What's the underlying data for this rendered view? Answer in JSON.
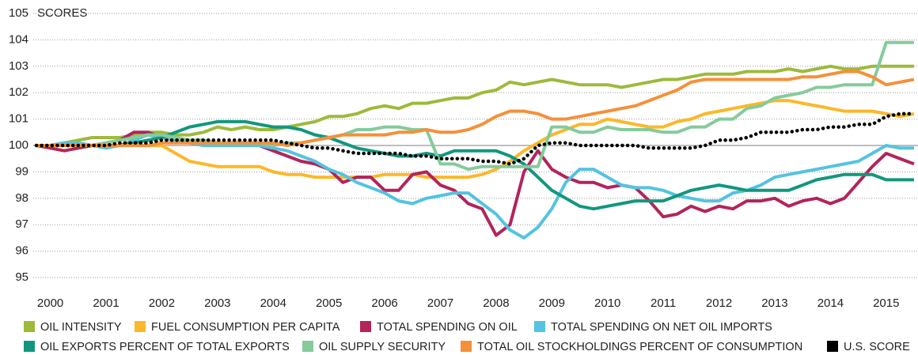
{
  "chart_data": {
    "type": "line",
    "y_label": "SCORES",
    "categories": [
      null,
      "2000",
      null,
      null,
      null,
      "2001",
      null,
      null,
      null,
      "2002",
      null,
      null,
      null,
      "2003",
      null,
      null,
      null,
      "2004",
      null,
      null,
      null,
      "2005",
      null,
      null,
      null,
      "2006",
      null,
      null,
      null,
      "2007",
      null,
      null,
      null,
      "2008",
      null,
      null,
      null,
      "2009",
      null,
      null,
      null,
      "2010",
      null,
      null,
      null,
      "2011",
      null,
      null,
      null,
      "2012",
      null,
      null,
      null,
      "2013",
      null,
      null,
      null,
      "2014",
      null,
      null,
      null,
      "2015",
      null,
      null
    ],
    "ylim": [
      95,
      105
    ],
    "yticks": [
      95,
      96,
      97,
      98,
      99,
      100,
      101,
      102,
      103,
      104,
      105
    ],
    "grid": true,
    "reference_line": 100,
    "legend": "bottom",
    "series": [
      {
        "name": "OIL INTENSITY",
        "color": "#9dba3a",
        "values": [
          100,
          100,
          100.1,
          100.2,
          100.3,
          100.3,
          100.3,
          100.4,
          100.5,
          100.5,
          100.4,
          100.4,
          100.5,
          100.7,
          100.6,
          100.7,
          100.6,
          100.6,
          100.7,
          100.8,
          100.9,
          101.1,
          101.1,
          101.2,
          101.4,
          101.5,
          101.4,
          101.6,
          101.6,
          101.7,
          101.8,
          101.8,
          102.0,
          102.1,
          102.4,
          102.3,
          102.4,
          102.5,
          102.4,
          102.3,
          102.3,
          102.3,
          102.2,
          102.3,
          102.4,
          102.5,
          102.5,
          102.6,
          102.7,
          102.7,
          102.7,
          102.8,
          102.8,
          102.8,
          102.9,
          102.8,
          102.9,
          103.0,
          102.9,
          102.9,
          103.0,
          103.0,
          103.0,
          103.0
        ]
      },
      {
        "name": "FUEL CONSUMPTION PER CAPITA",
        "color": "#fbb829",
        "values": [
          100,
          100,
          100,
          100,
          100,
          100,
          100,
          100,
          100,
          100,
          99.7,
          99.4,
          99.3,
          99.2,
          99.2,
          99.2,
          99.2,
          99.0,
          98.9,
          98.9,
          98.8,
          98.8,
          98.8,
          98.8,
          98.8,
          98.9,
          98.9,
          98.9,
          98.8,
          98.8,
          98.8,
          98.8,
          98.9,
          99.1,
          99.4,
          99.8,
          100.1,
          100.4,
          100.6,
          100.8,
          100.8,
          101.0,
          100.9,
          100.8,
          100.7,
          100.7,
          100.9,
          101.0,
          101.2,
          101.3,
          101.4,
          101.5,
          101.6,
          101.7,
          101.7,
          101.6,
          101.5,
          101.4,
          101.3,
          101.3,
          101.3,
          101.2,
          101.1,
          101.2
        ]
      },
      {
        "name": "TOTAL SPENDING ON OIL",
        "color": "#b3245b",
        "values": [
          100,
          99.9,
          99.8,
          99.9,
          100.0,
          100.1,
          100.2,
          100.5,
          100.5,
          100.3,
          100.2,
          100.1,
          100.0,
          100.0,
          100.1,
          100.1,
          100.0,
          99.8,
          99.6,
          99.4,
          99.3,
          99.1,
          98.6,
          98.8,
          98.8,
          98.3,
          98.3,
          98.9,
          99.0,
          98.5,
          98.3,
          97.8,
          97.6,
          96.6,
          97.0,
          99.0,
          99.8,
          99.1,
          98.8,
          98.6,
          98.6,
          98.4,
          98.5,
          98.4,
          97.9,
          97.3,
          97.4,
          97.7,
          97.5,
          97.7,
          97.6,
          97.9,
          97.9,
          98.0,
          97.7,
          97.9,
          98.0,
          97.8,
          98.0,
          98.6,
          99.2,
          99.7,
          99.5,
          99.3
        ]
      },
      {
        "name": "TOTAL SPENDING ON NET OIL IMPORTS",
        "color": "#54c3e0",
        "values": [
          100,
          100,
          100.1,
          100.1,
          100.0,
          99.9,
          100.0,
          100.2,
          100.4,
          100.3,
          100.2,
          100.1,
          100.0,
          100.0,
          100.0,
          100.0,
          100.0,
          99.9,
          99.8,
          99.6,
          99.4,
          99.1,
          98.9,
          98.6,
          98.4,
          98.2,
          97.9,
          97.8,
          98.0,
          98.1,
          98.2,
          98.2,
          97.8,
          97.4,
          96.8,
          96.5,
          96.9,
          97.6,
          98.6,
          99.1,
          99.1,
          98.8,
          98.5,
          98.4,
          98.4,
          98.3,
          98.1,
          98.0,
          97.9,
          97.9,
          98.2,
          98.3,
          98.5,
          98.8,
          98.9,
          99.0,
          99.1,
          99.2,
          99.3,
          99.4,
          99.7,
          100.0,
          99.9,
          99.9
        ]
      },
      {
        "name": "OIL EXPORTS PERCENT OF TOTAL EXPORTS",
        "color": "#12977e",
        "values": [
          100,
          100,
          100,
          100,
          100,
          100,
          100,
          100.1,
          100.2,
          100.3,
          100.5,
          100.7,
          100.8,
          100.9,
          100.9,
          100.9,
          100.8,
          100.7,
          100.7,
          100.6,
          100.4,
          100.3,
          100.1,
          99.9,
          99.8,
          99.7,
          99.6,
          99.6,
          99.7,
          99.6,
          99.8,
          99.8,
          99.8,
          99.8,
          99.6,
          99.3,
          98.8,
          98.3,
          98.0,
          97.7,
          97.6,
          97.7,
          97.8,
          97.9,
          97.9,
          97.9,
          98.1,
          98.3,
          98.4,
          98.5,
          98.4,
          98.3,
          98.3,
          98.3,
          98.3,
          98.5,
          98.7,
          98.8,
          98.9,
          98.9,
          98.9,
          98.7,
          98.7,
          98.7
        ]
      },
      {
        "name": "OIL SUPPLY SECURITY",
        "color": "#85cb9c",
        "values": [
          100,
          100,
          100,
          100,
          100,
          100.1,
          100.2,
          100.3,
          100.4,
          100.4,
          100.3,
          100.2,
          100.2,
          100.1,
          100.1,
          100.1,
          100.1,
          100.0,
          100.1,
          100.1,
          100.2,
          100.3,
          100.4,
          100.6,
          100.6,
          100.7,
          100.7,
          100.6,
          100.6,
          99.3,
          99.3,
          99.1,
          99.2,
          99.2,
          99.2,
          99.2,
          99.2,
          100.7,
          100.7,
          100.5,
          100.5,
          100.7,
          100.6,
          100.6,
          100.6,
          100.5,
          100.5,
          100.7,
          100.7,
          101.0,
          101.0,
          101.4,
          101.5,
          101.8,
          101.9,
          102.0,
          102.2,
          102.2,
          102.3,
          102.3,
          102.3,
          103.9,
          103.9,
          103.9
        ]
      },
      {
        "name": "TOTAL OIL STOCKHOLDINGS PERCENT OF CONSUMPTION",
        "color": "#f5903a",
        "values": [
          100,
          100,
          100,
          100,
          100,
          100,
          100,
          100,
          100,
          100.1,
          100.1,
          100.1,
          100.1,
          100.1,
          100.1,
          100.1,
          100.1,
          100.1,
          100.0,
          100.1,
          100.2,
          100.3,
          100.4,
          100.4,
          100.4,
          100.4,
          100.5,
          100.5,
          100.6,
          100.5,
          100.5,
          100.6,
          100.8,
          101.1,
          101.3,
          101.3,
          101.2,
          101.0,
          101.0,
          101.1,
          101.2,
          101.3,
          101.4,
          101.5,
          101.7,
          101.9,
          102.1,
          102.4,
          102.5,
          102.5,
          102.5,
          102.5,
          102.5,
          102.5,
          102.5,
          102.6,
          102.6,
          102.7,
          102.8,
          102.8,
          102.6,
          102.3,
          102.4,
          102.5
        ]
      },
      {
        "name": "U.S. SCORE",
        "color": "#000000",
        "dotted": true,
        "values": [
          100,
          100,
          100,
          100,
          100,
          100,
          100.1,
          100.1,
          100.1,
          100.2,
          100.2,
          100.2,
          100.2,
          100.2,
          100.2,
          100.2,
          100.2,
          100.2,
          100.1,
          100.0,
          99.9,
          99.9,
          99.8,
          99.7,
          99.7,
          99.7,
          99.7,
          99.6,
          99.6,
          99.5,
          99.5,
          99.5,
          99.4,
          99.4,
          99.3,
          99.5,
          100.0,
          100.1,
          100.1,
          100.0,
          100.0,
          100.0,
          100.0,
          100.0,
          99.9,
          99.9,
          99.9,
          99.9,
          100.0,
          100.2,
          100.2,
          100.3,
          100.5,
          100.5,
          100.5,
          100.6,
          100.6,
          100.7,
          100.7,
          100.8,
          100.8,
          101.1,
          101.2,
          101.2
        ]
      }
    ]
  }
}
